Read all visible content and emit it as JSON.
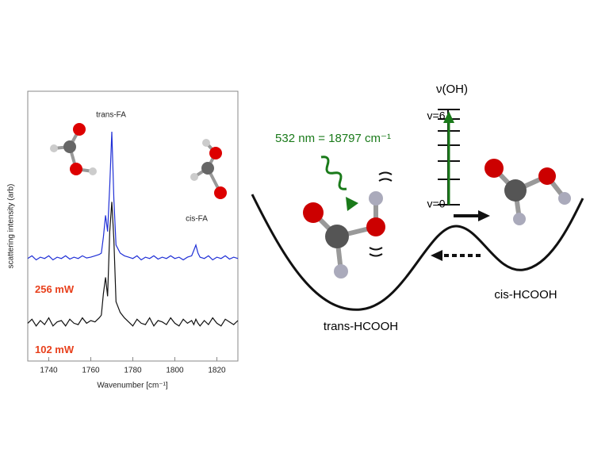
{
  "chart_data": {
    "type": "line",
    "x_label": "Wavenumber [cm⁻¹]",
    "y_label": "scattering intensity (arb)",
    "annotations": [
      "trans-FA",
      "cis-FA"
    ],
    "x": [
      1730,
      1732,
      1734,
      1736,
      1738,
      1740,
      1742,
      1744,
      1746,
      1748,
      1750,
      1752,
      1754,
      1756,
      1758,
      1760,
      1762,
      1764,
      1765,
      1766,
      1767,
      1768,
      1769,
      1770,
      1771,
      1772,
      1774,
      1776,
      1778,
      1780,
      1782,
      1784,
      1786,
      1788,
      1790,
      1792,
      1794,
      1796,
      1798,
      1800,
      1802,
      1804,
      1806,
      1808,
      1809,
      1810,
      1811,
      1812,
      1814,
      1816,
      1818,
      1820,
      1822,
      1824,
      1826,
      1828,
      1830
    ],
    "series": [
      {
        "name": "256 mW",
        "color": "#1f2fd6",
        "values": [
          3.8,
          3.9,
          3.75,
          3.85,
          3.8,
          3.9,
          3.75,
          3.85,
          3.8,
          3.9,
          3.78,
          3.85,
          3.8,
          3.9,
          3.82,
          3.85,
          3.9,
          3.95,
          4.0,
          4.6,
          5.4,
          4.8,
          6.5,
          8.5,
          6.0,
          4.3,
          4.0,
          3.9,
          3.85,
          3.8,
          3.9,
          3.75,
          3.85,
          3.8,
          3.9,
          3.78,
          3.85,
          3.8,
          3.9,
          3.8,
          3.85,
          3.75,
          3.85,
          3.9,
          4.1,
          4.3,
          4.0,
          3.85,
          3.8,
          3.9,
          3.75,
          3.85,
          3.8,
          3.9,
          3.78,
          3.85,
          3.8
        ]
      },
      {
        "name": "102 mW",
        "color": "#111111",
        "values": [
          1.4,
          1.55,
          1.3,
          1.5,
          1.35,
          1.6,
          1.3,
          1.45,
          1.5,
          1.3,
          1.55,
          1.4,
          1.35,
          1.6,
          1.4,
          1.5,
          1.45,
          1.6,
          1.7,
          2.5,
          3.1,
          2.4,
          4.8,
          5.9,
          4.5,
          2.2,
          1.8,
          1.6,
          1.45,
          1.3,
          1.55,
          1.4,
          1.35,
          1.6,
          1.3,
          1.5,
          1.45,
          1.35,
          1.6,
          1.4,
          1.3,
          1.55,
          1.4,
          1.5,
          1.35,
          1.55,
          1.4,
          1.3,
          1.5,
          1.35,
          1.6,
          1.4,
          1.3,
          1.55,
          1.45,
          1.35,
          1.5
        ]
      }
    ],
    "xlim": [
      1730,
      1830
    ],
    "ylim": [
      0,
      10
    ],
    "xticks": [
      1740,
      1760,
      1780,
      1800,
      1820
    ]
  },
  "diagram": {
    "level_title": "ν(OH)",
    "top_level": "v=6",
    "bottom_level": "v=0",
    "excitation": "532 nm = 18797 cm⁻¹",
    "left_well": "trans-HCOOH",
    "right_well": "cis-HCOOH"
  }
}
